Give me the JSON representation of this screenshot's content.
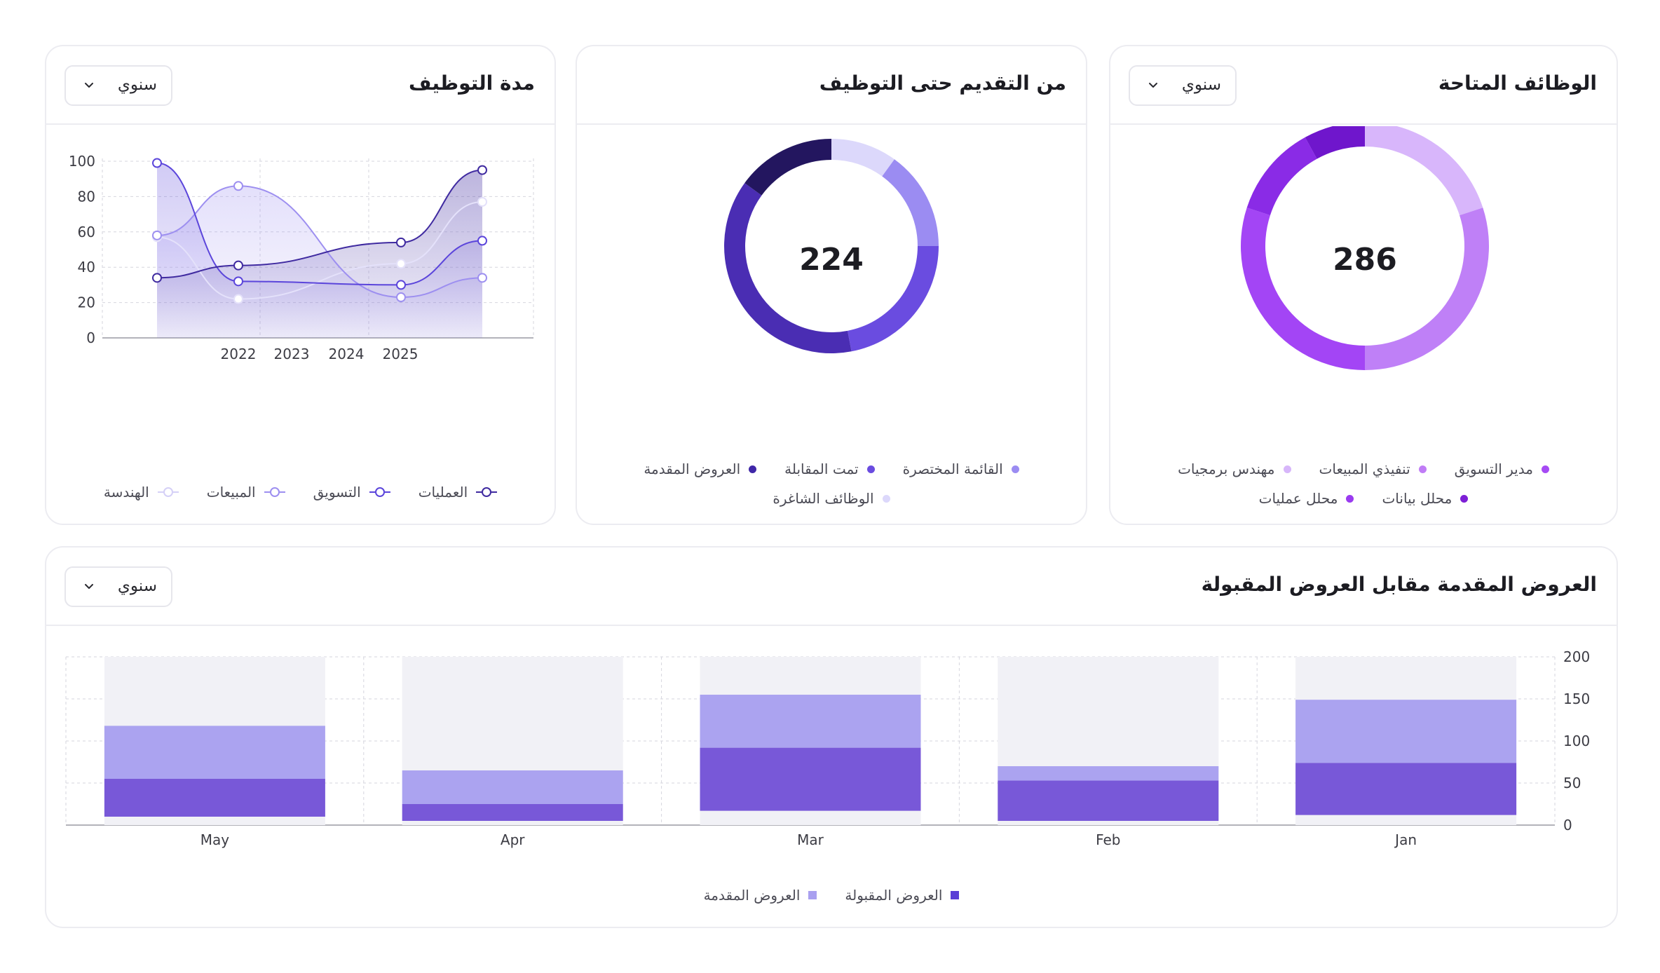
{
  "cards": {
    "jobs": {
      "title": "الوظائف المتاحة",
      "select": "سنوي",
      "center_value": "286",
      "legend": [
        {
          "label": "مدير التسويق",
          "color": "#a64bf4"
        },
        {
          "label": "تنفيذي المبيعات",
          "color": "#c07cf6"
        },
        {
          "label": "مهندس برمجيات",
          "color": "#d7b6fa"
        },
        {
          "label": "محلل بيانات",
          "color": "#7d1fd6"
        },
        {
          "label": "محلل عمليات",
          "color": "#9a3bf0"
        }
      ],
      "chart_data": {
        "type": "pie",
        "variant": "donut",
        "center_label": "286",
        "slices": [
          {
            "label": "مهندس برمجيات",
            "value": 0.2,
            "color": "#d8b6fb"
          },
          {
            "label": "تنفيذي المبيعات",
            "value": 0.3,
            "color": "#bf80f7"
          },
          {
            "label": "مدير التسويق",
            "value": 0.3,
            "color": "#a345f5"
          },
          {
            "label": "محلل عمليات",
            "value": 0.12,
            "color": "#8a2be6"
          },
          {
            "label": "محلل بيانات",
            "value": 0.08,
            "color": "#6f16cc"
          }
        ]
      }
    },
    "funnel": {
      "title": "من التقديم حتى التوظيف",
      "center_value": "224",
      "legend": [
        {
          "label": "القائمة المختصرة",
          "color": "#9b8cf2"
        },
        {
          "label": "تمت المقابلة",
          "color": "#6a4ce0"
        },
        {
          "label": "العروض المقدمة",
          "color": "#3f27a8"
        },
        {
          "label": "الوظائف الشاغرة",
          "color": "#dcd8fb"
        }
      ],
      "chart_data": {
        "type": "pie",
        "variant": "donut",
        "center_label": "224",
        "slices": [
          {
            "label": "الوظائف الشاغرة",
            "value": 0.1,
            "color": "#dcd8fb"
          },
          {
            "label": "القائمة المختصرة",
            "value": 0.15,
            "color": "#9b8cf2"
          },
          {
            "label": "تمت المقابلة",
            "value": 0.22,
            "color": "#6a4ce0"
          },
          {
            "label": "العروض المقدمة",
            "value": 0.38,
            "color": "#4a2db3"
          },
          {
            "label": "",
            "value": 0.15,
            "color": "#23165f"
          }
        ]
      }
    },
    "duration": {
      "title": "مدة التوظيف",
      "select": "سنوي",
      "legend": [
        {
          "label": "العمليات",
          "color": "#3f2aa0"
        },
        {
          "label": "التسويق",
          "color": "#5b45db"
        },
        {
          "label": "المبيعات",
          "color": "#9d8ff0"
        },
        {
          "label": "الهندسة",
          "color": "#d5d0f7"
        }
      ],
      "chart_data": {
        "type": "area",
        "x": [
          2021,
          2022,
          2023,
          2024,
          2025
        ],
        "x_tick_labels": [
          "2022",
          "2023",
          "2024",
          "2025"
        ],
        "ylim": [
          0,
          100
        ],
        "y_ticks": [
          0,
          20,
          40,
          60,
          80,
          100
        ],
        "grid": true,
        "legend_position": "bottom",
        "series": [
          {
            "name": "العمليات",
            "values": [
              34,
              41,
              54,
              95
            ],
            "x": [
              2021,
              2022,
              2024,
              2025
            ],
            "color": "#3f2aa0"
          },
          {
            "name": "التسويق",
            "values": [
              99,
              32,
              30,
              55
            ],
            "x": [
              2021,
              2022,
              2024,
              2025
            ],
            "color": "#5b45db"
          },
          {
            "name": "المبيعات",
            "values": [
              58,
              86,
              23,
              34
            ],
            "x": [
              2021,
              2022,
              2024,
              2025
            ],
            "color": "#9d8ff0"
          },
          {
            "name": "الهندسة",
            "values": [
              57,
              22,
              42,
              77
            ],
            "x": [
              2021,
              2022,
              2024,
              2025
            ],
            "color": "#e4e1fa"
          }
        ]
      }
    },
    "offers": {
      "title": "العروض المقدمة مقابل العروض المقبولة",
      "select": "سنوي",
      "legend": [
        {
          "label": "العروض المقبولة",
          "color": "#5a3ed6"
        },
        {
          "label": "العروض المقدمة",
          "color": "#a9a0f0"
        }
      ],
      "chart_data": {
        "type": "bar",
        "stacked": true,
        "categories": [
          "Jan",
          "Feb",
          "Mar",
          "Apr",
          "May"
        ],
        "ylim": [
          0,
          200
        ],
        "y_ticks": [
          0,
          50,
          100,
          150,
          200
        ],
        "series": [
          {
            "name": "العروض المقبولة",
            "values": [
              62,
              48,
              75,
              20,
              45
            ],
            "base": [
              12,
              5,
              17,
              5,
              10
            ],
            "color": "#7858d8"
          },
          {
            "name": "العروض المقدمة",
            "values": [
              75,
              17,
              63,
              40,
              63
            ],
            "color": "#aba3f0"
          }
        ]
      }
    }
  }
}
